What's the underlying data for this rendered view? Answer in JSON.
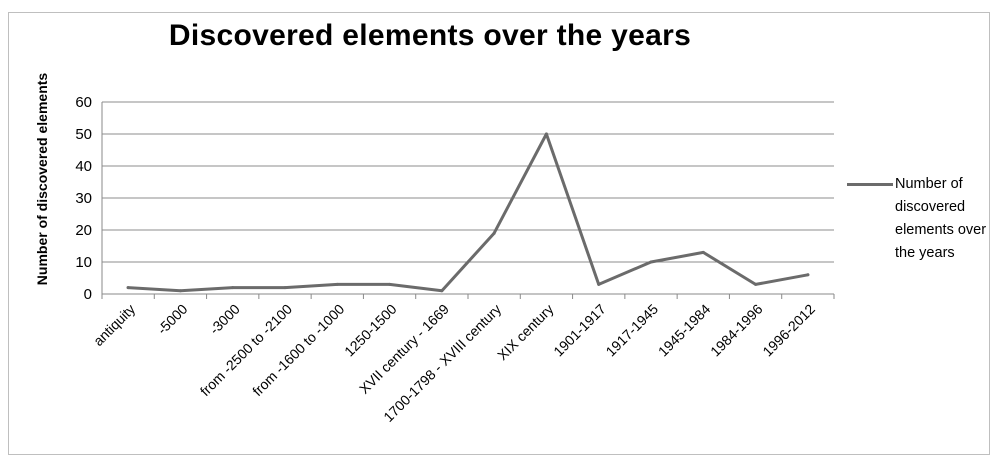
{
  "chart_data": {
    "type": "line",
    "title": "Discovered elements over the years",
    "xlabel": "",
    "ylabel": "Number of discovered elements",
    "ylim": [
      0,
      60
    ],
    "yticks": [
      0,
      10,
      20,
      30,
      40,
      50,
      60
    ],
    "grid": true,
    "legend_position": "right",
    "categories": [
      "antiquity",
      "-5000",
      "-3000",
      "from -2500 to -2100",
      "from -1600 to -1000",
      "1250-1500",
      "XVII century - 1669",
      "1700-1798 - XVIII century",
      "XIX century",
      "1901-1917",
      "1917-1945",
      "1945-1984",
      "1984-1996",
      "1996-2012"
    ],
    "series": [
      {
        "name": "Number of discovered elements over the years",
        "color": "#6b6b6b",
        "values": [
          2,
          1,
          2,
          2,
          3,
          3,
          1,
          19,
          50,
          3,
          10,
          13,
          3,
          6
        ]
      }
    ]
  }
}
